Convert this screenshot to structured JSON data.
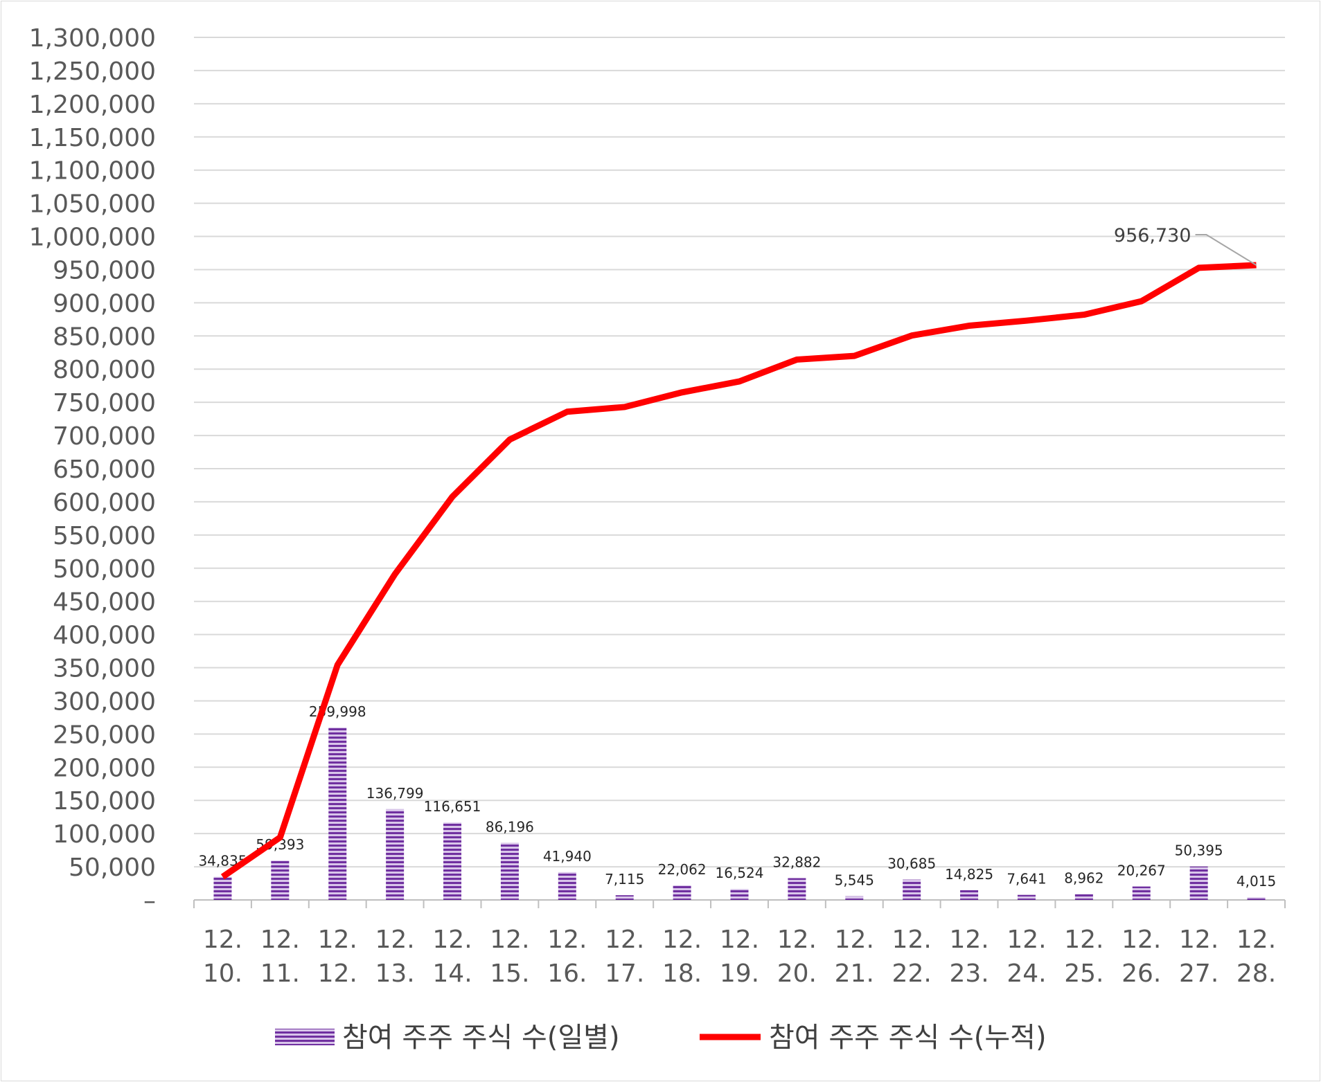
{
  "chart_data": {
    "type": "bar",
    "title": "",
    "xlabel": "",
    "ylabel": "",
    "ylim": [
      0,
      1300000
    ],
    "ytick_step": 50000,
    "yticks": [
      "–",
      "50,000",
      "100,000",
      "150,000",
      "200,000",
      "250,000",
      "300,000",
      "350,000",
      "400,000",
      "450,000",
      "500,000",
      "550,000",
      "600,000",
      "650,000",
      "700,000",
      "750,000",
      "800,000",
      "850,000",
      "900,000",
      "950,000",
      "1,000,000",
      "1,050,000",
      "1,100,000",
      "1,150,000",
      "1,200,000",
      "1,250,000",
      "1,300,000"
    ],
    "grid": true,
    "legend_position": "bottom",
    "categories": [
      [
        "12.",
        "10."
      ],
      [
        "12.",
        "11."
      ],
      [
        "12.",
        "12."
      ],
      [
        "12.",
        "13."
      ],
      [
        "12.",
        "14."
      ],
      [
        "12.",
        "15."
      ],
      [
        "12.",
        "16."
      ],
      [
        "12.",
        "17."
      ],
      [
        "12.",
        "18."
      ],
      [
        "12.",
        "19."
      ],
      [
        "12.",
        "20."
      ],
      [
        "12.",
        "21."
      ],
      [
        "12.",
        "22."
      ],
      [
        "12.",
        "23."
      ],
      [
        "12.",
        "24."
      ],
      [
        "12.",
        "25."
      ],
      [
        "12.",
        "26."
      ],
      [
        "12.",
        "27."
      ],
      [
        "12.",
        "28."
      ]
    ],
    "series": [
      {
        "name": "참여 주주 주식 수(일별)",
        "type": "bar",
        "color": "#7030a0",
        "values": [
          34835,
          59393,
          259998,
          136799,
          116651,
          86196,
          41940,
          7115,
          22062,
          16524,
          32882,
          5545,
          30685,
          14825,
          7641,
          8962,
          20267,
          50395,
          4015
        ],
        "labels": [
          "34,835",
          "59,393",
          "259,998",
          "136,799",
          "116,651",
          "86,196",
          "41,940",
          "7,115",
          "22,062",
          "16,524",
          "32,882",
          "5,545",
          "30,685",
          "14,825",
          "7,641",
          "8,962",
          "20,267",
          "50,395",
          "4,015"
        ]
      },
      {
        "name": "참여 주주 주식 수(누적)",
        "type": "line",
        "color": "#ff0000",
        "values": [
          34835,
          94228,
          354226,
          491025,
          607676,
          693872,
          735812,
          742927,
          764989,
          781513,
          814395,
          819940,
          850625,
          865450,
          873091,
          882053,
          902320,
          952715,
          956730
        ],
        "last_label": "956,730"
      }
    ]
  }
}
